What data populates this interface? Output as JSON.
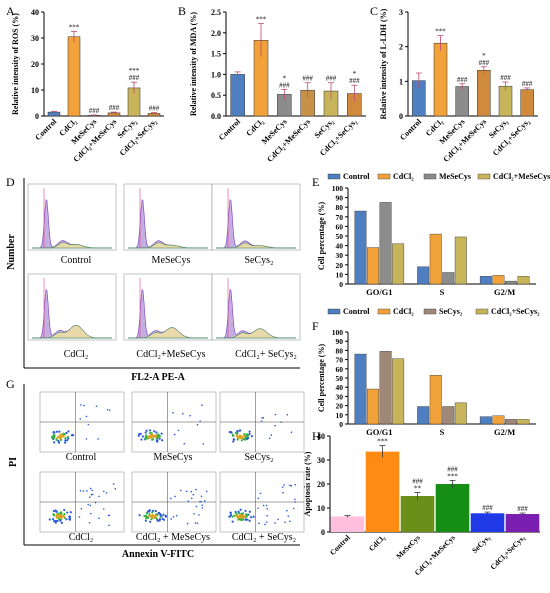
{
  "panel_letters": [
    "A",
    "B",
    "C",
    "D",
    "E",
    "F",
    "G",
    "H"
  ],
  "conditions": {
    "control": "Control",
    "mesecys": "MeSeCys",
    "secys2": "SeCys₂",
    "cdcl2": "CdCl₂",
    "cdcl2_mesecys": "CdCl₂+MeSeCys",
    "cdcl2_secys2": "CdCl₂+ SeCys₂",
    "cdcl2_mesecys_g": "CdCl₂ + MeSeCys",
    "cdcl2_secys2_g": "CdCl₂ + SeCys₂"
  },
  "flow": {
    "d_ylabel": "Number",
    "d_xlabel": "FL2-A PE-A",
    "g_ylabel": "PI",
    "g_xlabel": "Annexin V-FITC"
  },
  "colors": {
    "control": "#4f7fc0",
    "cdcl2": "#f2a23a",
    "mesecys": "#8c8c8c",
    "cdcl2_mesecys": "#c8b45a",
    "secys2": "#a08878",
    "h_colors": [
      "#ffbfdd",
      "#ff8a14",
      "#6c8f1a",
      "#168e16",
      "#1f39e6",
      "#7a1fb0"
    ]
  },
  "chart_data": [
    {
      "id": "A",
      "type": "bar",
      "ylabel": "Relative intensity of ROS (%)",
      "ylim": [
        0,
        40
      ],
      "yticks": [
        0,
        10,
        20,
        30,
        40
      ],
      "categories": [
        "Control",
        "CdCl₂",
        "MeSeCys",
        "CdCl₂+MeSeCys",
        "SeCys₂",
        "CdCl₂+SeCys₂"
      ],
      "values": [
        1.5,
        30.5,
        0.3,
        1.2,
        10.8,
        1.0
      ],
      "errors": [
        0.3,
        2.0,
        0.1,
        0.3,
        2.2,
        0.3
      ],
      "colors": [
        "#4f7fc0",
        "#f2a23a",
        "#8c8c8c",
        "#d08a3c",
        "#c8b45a",
        "#d08a3c"
      ],
      "annotations": [
        "",
        "***",
        "###",
        "###",
        "***\n###",
        "###"
      ]
    },
    {
      "id": "B",
      "type": "bar",
      "ylabel": "Relative intensity of MDA (%)",
      "ylim": [
        0,
        2.5
      ],
      "yticks": [
        0.0,
        0.5,
        1.0,
        1.5,
        2.0,
        2.5
      ],
      "categories": [
        "Control",
        "CdCl₂",
        "MeSeCys",
        "CdCl₂+MeSeCys",
        "SeCys₂",
        "CdCl₂+SeCys₂"
      ],
      "values": [
        1.0,
        1.82,
        0.52,
        0.62,
        0.6,
        0.54
      ],
      "errors": [
        0.06,
        0.4,
        0.12,
        0.18,
        0.2,
        0.2
      ],
      "colors": [
        "#4f7fc0",
        "#f2a23a",
        "#8c8c8c",
        "#c8914a",
        "#c8b45a",
        "#d08a3c"
      ],
      "annotations": [
        "",
        "***",
        "*\n###",
        "###",
        "###",
        "*\n###"
      ]
    },
    {
      "id": "C",
      "type": "bar",
      "ylabel": "Relative intensity of L-LDH (%)",
      "ylim": [
        0,
        3
      ],
      "yticks": [
        0,
        1,
        2,
        3
      ],
      "categories": [
        "Control",
        "CdCl₂",
        "MeSeCys",
        "CdCl₂+MeSeCys",
        "SeCys₂",
        "CdCl₂+SeCys₂"
      ],
      "values": [
        1.02,
        2.1,
        0.85,
        1.32,
        0.86,
        0.76
      ],
      "errors": [
        0.22,
        0.22,
        0.08,
        0.1,
        0.12,
        0.05
      ],
      "colors": [
        "#4f7fc0",
        "#f2a23a",
        "#8c8c8c",
        "#d08a3c",
        "#c8b45a",
        "#d08a3c"
      ],
      "annotations": [
        "",
        "***",
        "###",
        "*\n###",
        "###",
        "###"
      ]
    },
    {
      "id": "E",
      "type": "bar",
      "ylabel": "Cell percentage (%)",
      "ylim": [
        0,
        100
      ],
      "yticks": [
        0,
        10,
        20,
        30,
        40,
        50,
        60,
        70,
        80,
        90,
        100
      ],
      "categories": [
        "GO/G1",
        "S",
        "G2/M"
      ],
      "legend": "top",
      "series": [
        {
          "name": "Control",
          "values": [
            76,
            18,
            8
          ]
        },
        {
          "name": "CdCl₂",
          "values": [
            38,
            52,
            9
          ]
        },
        {
          "name": "MeSeCys",
          "values": [
            85,
            12,
            3
          ]
        },
        {
          "name": "CdCl₂+MeSeCys",
          "values": [
            42,
            49,
            8
          ]
        }
      ]
    },
    {
      "id": "F",
      "type": "bar",
      "ylabel": "Cell percentage (%)",
      "ylim": [
        0,
        100
      ],
      "yticks": [
        0,
        10,
        20,
        30,
        40,
        50,
        60,
        70,
        80,
        90,
        100
      ],
      "categories": [
        "GO/G1",
        "S",
        "G2/M"
      ],
      "legend": "top",
      "series": [
        {
          "name": "Control",
          "values": [
            76,
            19,
            8
          ]
        },
        {
          "name": "CdCl₂",
          "values": [
            38,
            53,
            9
          ]
        },
        {
          "name": "SeCys₂",
          "values": [
            79,
            19,
            5
          ]
        },
        {
          "name": "CdCl₂+SeCys₂",
          "values": [
            71,
            23,
            5
          ]
        }
      ]
    },
    {
      "id": "H",
      "type": "bar",
      "ylabel": "Apoptosis rate (%)",
      "ylim": [
        0,
        40
      ],
      "yticks": [
        0,
        10,
        20,
        30,
        40
      ],
      "categories": [
        "Control",
        "CdCl₂",
        "MeSeCys",
        "CdCl₂+MeSeCys",
        "SeCys₂",
        "CdCl₂+SeCys₂"
      ],
      "values": [
        6.5,
        33.5,
        15,
        20,
        7.8,
        7.5
      ],
      "errors": [
        0.4,
        2.5,
        1.5,
        1.5,
        0.5,
        0.4
      ],
      "annotations": [
        "",
        "***",
        "###\n**",
        "###\n***",
        "###",
        "###"
      ]
    }
  ]
}
